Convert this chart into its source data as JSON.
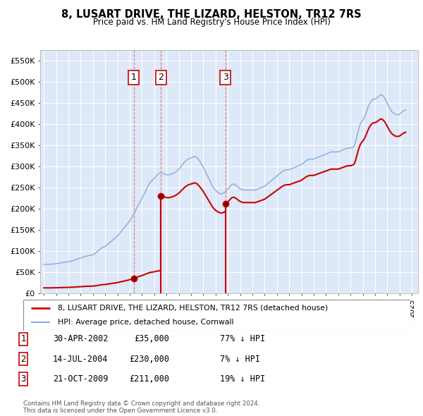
{
  "title": "8, LUSART DRIVE, THE LIZARD, HELSTON, TR12 7RS",
  "subtitle": "Price paid vs. HM Land Registry's House Price Index (HPI)",
  "ylim": [
    0,
    575000
  ],
  "yticks": [
    0,
    50000,
    100000,
    150000,
    200000,
    250000,
    300000,
    350000,
    400000,
    450000,
    500000,
    550000
  ],
  "ytick_labels": [
    "£0",
    "£50K",
    "£100K",
    "£150K",
    "£200K",
    "£250K",
    "£300K",
    "£350K",
    "£400K",
    "£450K",
    "£500K",
    "£550K"
  ],
  "xlim_start": 1994.7,
  "xlim_end": 2025.5,
  "plot_bg_color": "#dde8f8",
  "grid_color": "#ffffff",
  "sale_color": "#cc0000",
  "hpi_color": "#88aadd",
  "sale_label": "8, LUSART DRIVE, THE LIZARD, HELSTON, TR12 7RS (detached house)",
  "hpi_label": "HPI: Average price, detached house, Cornwall",
  "transactions": [
    {
      "num": 1,
      "date": "30-APR-2002",
      "price": 35000,
      "pct": "77%",
      "year": 2002.33
    },
    {
      "num": 2,
      "date": "14-JUL-2004",
      "price": 230000,
      "pct": "7%",
      "year": 2004.54
    },
    {
      "num": 3,
      "date": "21-OCT-2009",
      "price": 211000,
      "pct": "19%",
      "year": 2009.8
    }
  ],
  "footer": "Contains HM Land Registry data © Crown copyright and database right 2024.\nThis data is licensed under the Open Government Licence v3.0.",
  "hpi_data": [
    [
      1995.0,
      68000
    ],
    [
      1995.083,
      68200
    ],
    [
      1995.167,
      68100
    ],
    [
      1995.25,
      68300
    ],
    [
      1995.333,
      68500
    ],
    [
      1995.417,
      68400
    ],
    [
      1995.5,
      68600
    ],
    [
      1995.583,
      68800
    ],
    [
      1995.667,
      69000
    ],
    [
      1995.75,
      69200
    ],
    [
      1995.833,
      69400
    ],
    [
      1995.917,
      69600
    ],
    [
      1996.0,
      70000
    ],
    [
      1996.083,
      70300
    ],
    [
      1996.167,
      70600
    ],
    [
      1996.25,
      71000
    ],
    [
      1996.333,
      71400
    ],
    [
      1996.417,
      71800
    ],
    [
      1996.5,
      72200
    ],
    [
      1996.583,
      72600
    ],
    [
      1996.667,
      73000
    ],
    [
      1996.75,
      73400
    ],
    [
      1996.833,
      73800
    ],
    [
      1996.917,
      74200
    ],
    [
      1997.0,
      74500
    ],
    [
      1997.083,
      75000
    ],
    [
      1997.167,
      75500
    ],
    [
      1997.25,
      76000
    ],
    [
      1997.333,
      76800
    ],
    [
      1997.417,
      77500
    ],
    [
      1997.5,
      78500
    ],
    [
      1997.583,
      79500
    ],
    [
      1997.667,
      80500
    ],
    [
      1997.75,
      81500
    ],
    [
      1997.833,
      82000
    ],
    [
      1997.917,
      82500
    ],
    [
      1998.0,
      83000
    ],
    [
      1998.083,
      84000
    ],
    [
      1998.167,
      85000
    ],
    [
      1998.25,
      86000
    ],
    [
      1998.333,
      87000
    ],
    [
      1998.417,
      87500
    ],
    [
      1998.5,
      88000
    ],
    [
      1998.583,
      88500
    ],
    [
      1998.667,
      89000
    ],
    [
      1998.75,
      89500
    ],
    [
      1998.833,
      90000
    ],
    [
      1998.917,
      90500
    ],
    [
      1999.0,
      91000
    ],
    [
      1999.083,
      92500
    ],
    [
      1999.167,
      94000
    ],
    [
      1999.25,
      96000
    ],
    [
      1999.333,
      98000
    ],
    [
      1999.417,
      100000
    ],
    [
      1999.5,
      102000
    ],
    [
      1999.583,
      104000
    ],
    [
      1999.667,
      106000
    ],
    [
      1999.75,
      108000
    ],
    [
      1999.833,
      109000
    ],
    [
      1999.917,
      110000
    ],
    [
      2000.0,
      111000
    ],
    [
      2000.083,
      113000
    ],
    [
      2000.167,
      115000
    ],
    [
      2000.25,
      117000
    ],
    [
      2000.333,
      119000
    ],
    [
      2000.417,
      121000
    ],
    [
      2000.5,
      123000
    ],
    [
      2000.583,
      125000
    ],
    [
      2000.667,
      127000
    ],
    [
      2000.75,
      129000
    ],
    [
      2000.833,
      131000
    ],
    [
      2000.917,
      133000
    ],
    [
      2001.0,
      135000
    ],
    [
      2001.083,
      138000
    ],
    [
      2001.167,
      141000
    ],
    [
      2001.25,
      144000
    ],
    [
      2001.333,
      147000
    ],
    [
      2001.417,
      150000
    ],
    [
      2001.5,
      153000
    ],
    [
      2001.583,
      156000
    ],
    [
      2001.667,
      159000
    ],
    [
      2001.75,
      162000
    ],
    [
      2001.833,
      165000
    ],
    [
      2001.917,
      168000
    ],
    [
      2002.0,
      171000
    ],
    [
      2002.083,
      175000
    ],
    [
      2002.167,
      179000
    ],
    [
      2002.25,
      183000
    ],
    [
      2002.333,
      187000
    ],
    [
      2002.417,
      192000
    ],
    [
      2002.5,
      197000
    ],
    [
      2002.583,
      202000
    ],
    [
      2002.667,
      207000
    ],
    [
      2002.75,
      212000
    ],
    [
      2002.833,
      216000
    ],
    [
      2002.917,
      220000
    ],
    [
      2003.0,
      224000
    ],
    [
      2003.083,
      229000
    ],
    [
      2003.167,
      234000
    ],
    [
      2003.25,
      239000
    ],
    [
      2003.333,
      244000
    ],
    [
      2003.417,
      249000
    ],
    [
      2003.5,
      254000
    ],
    [
      2003.583,
      258000
    ],
    [
      2003.667,
      262000
    ],
    [
      2003.75,
      265000
    ],
    [
      2003.833,
      267000
    ],
    [
      2003.917,
      269000
    ],
    [
      2004.0,
      271000
    ],
    [
      2004.083,
      274000
    ],
    [
      2004.167,
      277000
    ],
    [
      2004.25,
      280000
    ],
    [
      2004.333,
      282000
    ],
    [
      2004.417,
      284000
    ],
    [
      2004.5,
      285000
    ],
    [
      2004.583,
      285000
    ],
    [
      2004.667,
      284000
    ],
    [
      2004.75,
      283000
    ],
    [
      2004.833,
      282000
    ],
    [
      2004.917,
      281000
    ],
    [
      2005.0,
      280000
    ],
    [
      2005.083,
      280000
    ],
    [
      2005.167,
      280000
    ],
    [
      2005.25,
      280000
    ],
    [
      2005.333,
      281000
    ],
    [
      2005.417,
      282000
    ],
    [
      2005.5,
      283000
    ],
    [
      2005.583,
      284000
    ],
    [
      2005.667,
      285000
    ],
    [
      2005.75,
      287000
    ],
    [
      2005.833,
      289000
    ],
    [
      2005.917,
      291000
    ],
    [
      2006.0,
      293000
    ],
    [
      2006.083,
      296000
    ],
    [
      2006.167,
      299000
    ],
    [
      2006.25,
      302000
    ],
    [
      2006.333,
      305000
    ],
    [
      2006.417,
      308000
    ],
    [
      2006.5,
      311000
    ],
    [
      2006.583,
      313000
    ],
    [
      2006.667,
      315000
    ],
    [
      2006.75,
      317000
    ],
    [
      2006.833,
      318000
    ],
    [
      2006.917,
      319000
    ],
    [
      2007.0,
      320000
    ],
    [
      2007.083,
      321000
    ],
    [
      2007.167,
      322000
    ],
    [
      2007.25,
      323000
    ],
    [
      2007.333,
      323000
    ],
    [
      2007.417,
      322000
    ],
    [
      2007.5,
      320000
    ],
    [
      2007.583,
      317000
    ],
    [
      2007.667,
      314000
    ],
    [
      2007.75,
      310000
    ],
    [
      2007.833,
      306000
    ],
    [
      2007.917,
      302000
    ],
    [
      2008.0,
      298000
    ],
    [
      2008.083,
      293000
    ],
    [
      2008.167,
      288000
    ],
    [
      2008.25,
      283000
    ],
    [
      2008.333,
      278000
    ],
    [
      2008.417,
      273000
    ],
    [
      2008.5,
      268000
    ],
    [
      2008.583,
      263000
    ],
    [
      2008.667,
      258000
    ],
    [
      2008.75,
      253000
    ],
    [
      2008.833,
      249000
    ],
    [
      2008.917,
      246000
    ],
    [
      2009.0,
      243000
    ],
    [
      2009.083,
      241000
    ],
    [
      2009.167,
      239000
    ],
    [
      2009.25,
      237000
    ],
    [
      2009.333,
      236000
    ],
    [
      2009.417,
      235000
    ],
    [
      2009.5,
      235000
    ],
    [
      2009.583,
      236000
    ],
    [
      2009.667,
      237000
    ],
    [
      2009.75,
      239000
    ],
    [
      2009.833,
      241000
    ],
    [
      2009.917,
      243000
    ],
    [
      2010.0,
      246000
    ],
    [
      2010.083,
      249000
    ],
    [
      2010.167,
      252000
    ],
    [
      2010.25,
      255000
    ],
    [
      2010.333,
      257000
    ],
    [
      2010.417,
      258000
    ],
    [
      2010.5,
      258000
    ],
    [
      2010.583,
      257000
    ],
    [
      2010.667,
      255000
    ],
    [
      2010.75,
      253000
    ],
    [
      2010.833,
      251000
    ],
    [
      2010.917,
      249000
    ],
    [
      2011.0,
      247000
    ],
    [
      2011.083,
      246000
    ],
    [
      2011.167,
      245000
    ],
    [
      2011.25,
      244000
    ],
    [
      2011.333,
      244000
    ],
    [
      2011.417,
      244000
    ],
    [
      2011.5,
      244000
    ],
    [
      2011.583,
      244000
    ],
    [
      2011.667,
      244000
    ],
    [
      2011.75,
      244000
    ],
    [
      2011.833,
      244000
    ],
    [
      2011.917,
      244000
    ],
    [
      2012.0,
      244000
    ],
    [
      2012.083,
      244000
    ],
    [
      2012.167,
      244000
    ],
    [
      2012.25,
      244000
    ],
    [
      2012.333,
      245000
    ],
    [
      2012.417,
      246000
    ],
    [
      2012.5,
      247000
    ],
    [
      2012.583,
      248000
    ],
    [
      2012.667,
      249000
    ],
    [
      2012.75,
      250000
    ],
    [
      2012.833,
      251000
    ],
    [
      2012.917,
      252000
    ],
    [
      2013.0,
      253000
    ],
    [
      2013.083,
      255000
    ],
    [
      2013.167,
      257000
    ],
    [
      2013.25,
      259000
    ],
    [
      2013.333,
      261000
    ],
    [
      2013.417,
      263000
    ],
    [
      2013.5,
      265000
    ],
    [
      2013.583,
      267000
    ],
    [
      2013.667,
      269000
    ],
    [
      2013.75,
      271000
    ],
    [
      2013.833,
      273000
    ],
    [
      2013.917,
      275000
    ],
    [
      2014.0,
      277000
    ],
    [
      2014.083,
      279000
    ],
    [
      2014.167,
      281000
    ],
    [
      2014.25,
      283000
    ],
    [
      2014.333,
      285000
    ],
    [
      2014.417,
      287000
    ],
    [
      2014.5,
      289000
    ],
    [
      2014.583,
      290000
    ],
    [
      2014.667,
      291000
    ],
    [
      2014.75,
      292000
    ],
    [
      2014.833,
      292000
    ],
    [
      2014.917,
      292000
    ],
    [
      2015.0,
      292000
    ],
    [
      2015.083,
      293000
    ],
    [
      2015.167,
      294000
    ],
    [
      2015.25,
      295000
    ],
    [
      2015.333,
      296000
    ],
    [
      2015.417,
      297000
    ],
    [
      2015.5,
      298000
    ],
    [
      2015.583,
      299000
    ],
    [
      2015.667,
      300000
    ],
    [
      2015.75,
      301000
    ],
    [
      2015.833,
      302000
    ],
    [
      2015.917,
      303000
    ],
    [
      2016.0,
      304000
    ],
    [
      2016.083,
      306000
    ],
    [
      2016.167,
      308000
    ],
    [
      2016.25,
      310000
    ],
    [
      2016.333,
      312000
    ],
    [
      2016.417,
      314000
    ],
    [
      2016.5,
      315000
    ],
    [
      2016.583,
      316000
    ],
    [
      2016.667,
      317000
    ],
    [
      2016.75,
      317000
    ],
    [
      2016.833,
      317000
    ],
    [
      2016.917,
      317000
    ],
    [
      2017.0,
      317000
    ],
    [
      2017.083,
      318000
    ],
    [
      2017.167,
      319000
    ],
    [
      2017.25,
      320000
    ],
    [
      2017.333,
      321000
    ],
    [
      2017.417,
      322000
    ],
    [
      2017.5,
      323000
    ],
    [
      2017.583,
      324000
    ],
    [
      2017.667,
      325000
    ],
    [
      2017.75,
      326000
    ],
    [
      2017.833,
      327000
    ],
    [
      2017.917,
      328000
    ],
    [
      2018.0,
      329000
    ],
    [
      2018.083,
      330000
    ],
    [
      2018.167,
      331000
    ],
    [
      2018.25,
      332000
    ],
    [
      2018.333,
      333000
    ],
    [
      2018.417,
      334000
    ],
    [
      2018.5,
      334000
    ],
    [
      2018.583,
      334000
    ],
    [
      2018.667,
      334000
    ],
    [
      2018.75,
      334000
    ],
    [
      2018.833,
      334000
    ],
    [
      2018.917,
      334000
    ],
    [
      2019.0,
      334000
    ],
    [
      2019.083,
      335000
    ],
    [
      2019.167,
      336000
    ],
    [
      2019.25,
      337000
    ],
    [
      2019.333,
      338000
    ],
    [
      2019.417,
      339000
    ],
    [
      2019.5,
      340000
    ],
    [
      2019.583,
      341000
    ],
    [
      2019.667,
      342000
    ],
    [
      2019.75,
      343000
    ],
    [
      2019.833,
      343000
    ],
    [
      2019.917,
      343000
    ],
    [
      2020.0,
      343000
    ],
    [
      2020.083,
      344000
    ],
    [
      2020.167,
      345000
    ],
    [
      2020.25,
      346000
    ],
    [
      2020.333,
      350000
    ],
    [
      2020.417,
      358000
    ],
    [
      2020.5,
      368000
    ],
    [
      2020.583,
      378000
    ],
    [
      2020.667,
      388000
    ],
    [
      2020.75,
      396000
    ],
    [
      2020.833,
      402000
    ],
    [
      2020.917,
      406000
    ],
    [
      2021.0,
      409000
    ],
    [
      2021.083,
      413000
    ],
    [
      2021.167,
      418000
    ],
    [
      2021.25,
      424000
    ],
    [
      2021.333,
      431000
    ],
    [
      2021.417,
      438000
    ],
    [
      2021.5,
      444000
    ],
    [
      2021.583,
      449000
    ],
    [
      2021.667,
      453000
    ],
    [
      2021.75,
      456000
    ],
    [
      2021.833,
      458000
    ],
    [
      2021.917,
      459000
    ],
    [
      2022.0,
      459000
    ],
    [
      2022.083,
      460000
    ],
    [
      2022.167,
      462000
    ],
    [
      2022.25,
      464000
    ],
    [
      2022.333,
      466000
    ],
    [
      2022.417,
      468000
    ],
    [
      2022.5,
      469000
    ],
    [
      2022.583,
      468000
    ],
    [
      2022.667,
      466000
    ],
    [
      2022.75,
      463000
    ],
    [
      2022.833,
      459000
    ],
    [
      2022.917,
      454000
    ],
    [
      2023.0,
      449000
    ],
    [
      2023.083,
      444000
    ],
    [
      2023.167,
      439000
    ],
    [
      2023.25,
      435000
    ],
    [
      2023.333,
      431000
    ],
    [
      2023.417,
      428000
    ],
    [
      2023.5,
      426000
    ],
    [
      2023.583,
      424000
    ],
    [
      2023.667,
      423000
    ],
    [
      2023.75,
      422000
    ],
    [
      2023.833,
      422000
    ],
    [
      2023.917,
      422000
    ],
    [
      2024.0,
      423000
    ],
    [
      2024.083,
      425000
    ],
    [
      2024.167,
      427000
    ],
    [
      2024.25,
      429000
    ],
    [
      2024.333,
      431000
    ],
    [
      2024.417,
      432000
    ],
    [
      2024.5,
      433000
    ]
  ]
}
